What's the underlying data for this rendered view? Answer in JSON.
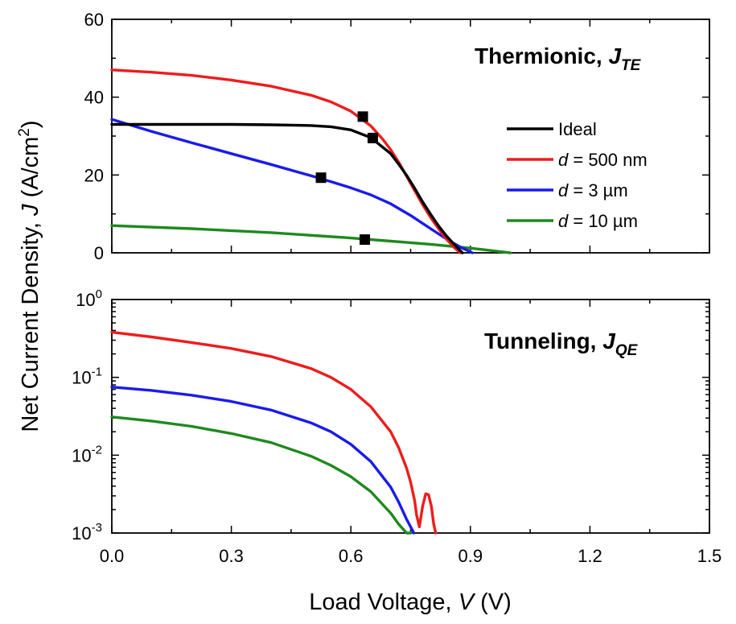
{
  "chart_data": [
    {
      "type": "line",
      "panel": "top",
      "title": {
        "main": "Thermionic, ",
        "sym": "J",
        "sub": "TE"
      },
      "ylabel": "Net Current Density, J (A/cm²)",
      "ylabel_parts": {
        "pre": "Net Current Density, ",
        "sym": "J",
        "post": " (A/cm",
        "sup": "2",
        "end": ")"
      },
      "xlabel": "Load Voltage, V (V)",
      "xlabel_parts": {
        "pre": "Load Voltage, ",
        "sym": "V",
        "post": " (V)"
      },
      "xlim": [
        0,
        1.5
      ],
      "ylim": [
        0,
        60
      ],
      "x_ticks": [
        0,
        0.3,
        0.6,
        0.9,
        1.2,
        1.5
      ],
      "y_ticks": [
        0,
        20,
        40,
        60
      ],
      "y_tick_labels": [
        "0",
        "20",
        "40",
        "60"
      ],
      "legend_position": "right",
      "series": [
        {
          "name": "Ideal",
          "legend": {
            "sym": "",
            "rest": "Ideal"
          },
          "color": "#000000",
          "x": [
            0,
            0.1,
            0.2,
            0.3,
            0.4,
            0.5,
            0.55,
            0.6,
            0.65,
            0.7,
            0.72,
            0.74,
            0.76,
            0.78,
            0.8,
            0.82,
            0.84,
            0.86,
            0.88
          ],
          "y": [
            33,
            33,
            33,
            33,
            32.9,
            32.7,
            32.4,
            31.6,
            29.6,
            25.5,
            22.8,
            19.9,
            16.6,
            13.1,
            9.9,
            6.9,
            4.3,
            2.1,
            0
          ],
          "marker": [
            0.655,
            29.5
          ]
        },
        {
          "name": "d = 500 nm",
          "legend": {
            "sym": "d",
            "rest": " = 500 nm"
          },
          "color": "#ee1c1c",
          "x": [
            0,
            0.1,
            0.2,
            0.3,
            0.4,
            0.5,
            0.55,
            0.6,
            0.65,
            0.68,
            0.7,
            0.72,
            0.74,
            0.76,
            0.78,
            0.8,
            0.82,
            0.84,
            0.86,
            0.875
          ],
          "y": [
            47,
            46.4,
            45.6,
            44.4,
            42.8,
            40.5,
            38.8,
            36.4,
            32.6,
            29.2,
            26.5,
            23.3,
            19.7,
            16.0,
            12.4,
            9.1,
            6.2,
            3.5,
            1.3,
            0
          ],
          "marker": [
            0.63,
            35
          ]
        },
        {
          "name": "d = 3 µm",
          "legend": {
            "sym": "d",
            "rest": " = 3 µm"
          },
          "color": "#1a1aee",
          "x": [
            0,
            0.1,
            0.2,
            0.3,
            0.4,
            0.5,
            0.55,
            0.6,
            0.65,
            0.7,
            0.75,
            0.8,
            0.85,
            0.88,
            0.905
          ],
          "y": [
            34.3,
            31.2,
            28.3,
            25.5,
            22.7,
            19.8,
            18.3,
            16.7,
            14.9,
            12.6,
            9.6,
            6.2,
            2.9,
            1.2,
            0
          ],
          "marker": [
            0.525,
            19.3
          ]
        },
        {
          "name": "d = 10 µm",
          "legend": {
            "sym": "d",
            "rest": " = 10 µm"
          },
          "color": "#1e8a1e",
          "x": [
            0,
            0.2,
            0.4,
            0.6,
            0.7,
            0.8,
            0.85,
            0.9,
            0.95,
            0.98,
            1.0
          ],
          "y": [
            7,
            6.2,
            5.2,
            3.8,
            3.0,
            2.2,
            1.7,
            1.2,
            0.6,
            0.25,
            0
          ],
          "marker": [
            0.635,
            3.4
          ]
        }
      ]
    },
    {
      "type": "line",
      "panel": "bottom",
      "title": {
        "main": "Tunneling, ",
        "sym": "J",
        "sub": "QE"
      },
      "xlim": [
        0,
        1.5
      ],
      "ylim": [
        0.001,
        1
      ],
      "yscale": "log",
      "x_ticks": [
        0,
        0.3,
        0.6,
        0.9,
        1.2,
        1.5
      ],
      "x_tick_labels": [
        "0.0",
        "0.3",
        "0.6",
        "0.9",
        "1.2",
        "1.5"
      ],
      "y_ticks": [
        1,
        0.1,
        0.01,
        0.001
      ],
      "y_tick_labels": [
        {
          "base": "10",
          "exp": "0"
        },
        {
          "base": "10",
          "exp": "-1"
        },
        {
          "base": "10",
          "exp": "-2"
        },
        {
          "base": "10",
          "exp": "-3"
        }
      ],
      "series": [
        {
          "name": "d = 500 nm",
          "color": "#ee1c1c",
          "x": [
            0,
            0.1,
            0.2,
            0.3,
            0.4,
            0.5,
            0.55,
            0.6,
            0.65,
            0.7,
            0.72,
            0.74,
            0.75,
            0.76,
            0.765,
            0.772,
            0.78,
            0.788,
            0.795,
            0.802,
            0.808,
            0.813
          ],
          "y": [
            0.38,
            0.33,
            0.28,
            0.235,
            0.185,
            0.13,
            0.1,
            0.07,
            0.042,
            0.02,
            0.0125,
            0.0068,
            0.0045,
            0.0026,
            0.0017,
            0.0012,
            0.0022,
            0.0032,
            0.0031,
            0.0022,
            0.0013,
            0.001
          ]
        },
        {
          "name": "d = 3 µm",
          "color": "#1a1aee",
          "x": [
            0,
            0.1,
            0.2,
            0.3,
            0.4,
            0.5,
            0.55,
            0.6,
            0.65,
            0.7,
            0.72,
            0.74,
            0.75,
            0.758
          ],
          "y": [
            0.075,
            0.068,
            0.059,
            0.049,
            0.038,
            0.026,
            0.02,
            0.0138,
            0.0083,
            0.0039,
            0.0025,
            0.0015,
            0.0012,
            0.001
          ]
        },
        {
          "name": "d = 10 µm",
          "color": "#1e8a1e",
          "x": [
            0,
            0.1,
            0.2,
            0.3,
            0.4,
            0.5,
            0.55,
            0.6,
            0.65,
            0.7,
            0.72,
            0.74,
            0.75
          ],
          "y": [
            0.031,
            0.0275,
            0.0235,
            0.019,
            0.0145,
            0.0097,
            0.0074,
            0.0053,
            0.0034,
            0.0018,
            0.0013,
            0.001,
            0.00098
          ]
        }
      ]
    }
  ]
}
